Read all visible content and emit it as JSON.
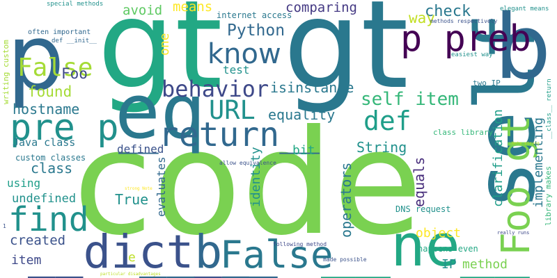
{
  "words": [
    {
      "text": "code",
      "color": "#7ad151"
    },
    {
      "text": "gt",
      "color": "#22a884"
    },
    {
      "text": "gt",
      "color": "#2a788e"
    },
    {
      "text": "self",
      "color": "#2a788e"
    },
    {
      "text": "p",
      "color": "#31688e"
    },
    {
      "text": "b",
      "color": "#31688e"
    },
    {
      "text": "eq",
      "color": "#2a788e"
    },
    {
      "text": "__ne__",
      "color": "#22a884"
    },
    {
      "text": "__dict__",
      "color": "#3b528b"
    },
    {
      "text": "__b__",
      "color": "#31688e"
    },
    {
      "text": "False",
      "color": "#2a788e"
    },
    {
      "text": "Foo gt",
      "color": "#7ad151"
    },
    {
      "text": "p preb",
      "color": "#440154"
    },
    {
      "text": "pre p",
      "color": "#21918c"
    },
    {
      "text": "__return__",
      "color": "#31688e"
    },
    {
      "text": "find",
      "color": "#21918c"
    },
    {
      "text": "False",
      "color": "#a5db36"
    },
    {
      "text": "know",
      "color": "#31688e"
    },
    {
      "text": "behavior",
      "color": "#3e4989"
    },
    {
      "text": "URL",
      "color": "#21918c"
    },
    {
      "text": "def",
      "color": "#1f9e89"
    },
    {
      "text": "self item",
      "color": "#35b779"
    },
    {
      "text": "Python",
      "color": "#31688e"
    },
    {
      "text": "means",
      "color": "#fde725"
    },
    {
      "text": "comparing",
      "color": "#443983"
    },
    {
      "text": "avoid",
      "color": "#5ec962"
    },
    {
      "text": "check",
      "color": "#2a788e"
    },
    {
      "text": "way",
      "color": "#c2df23"
    },
    {
      "text": "Foo",
      "color": "#3e4989"
    },
    {
      "text": "found",
      "color": "#a5db36"
    },
    {
      "text": "hostname",
      "color": "#2a788e"
    },
    {
      "text": "test",
      "color": "#21918c"
    },
    {
      "text": "isinstance",
      "color": "#2a788e"
    },
    {
      "text": "equality",
      "color": "#2a788e"
    },
    {
      "text": "one",
      "color": "#fde725"
    },
    {
      "text": "Java class",
      "color": "#2a788e"
    },
    {
      "text": "defined",
      "color": "#3b528b"
    },
    {
      "text": "bit",
      "color": "#22a884"
    },
    {
      "text": "String",
      "color": "#21918c"
    },
    {
      "text": "class",
      "color": "#2a788e"
    },
    {
      "text": "custom classes",
      "color": "#2a788e"
    },
    {
      "text": "using",
      "color": "#1f9e89"
    },
    {
      "text": "undefined",
      "color": "#21918c"
    },
    {
      "text": "created",
      "color": "#3b528b"
    },
    {
      "text": "item",
      "color": "#3e4989"
    },
    {
      "text": "True",
      "color": "#21918c"
    },
    {
      "text": "evaluates",
      "color": "#31688e"
    },
    {
      "text": "identity",
      "color": "#21918c"
    },
    {
      "text": "operators",
      "color": "#2a788e"
    },
    {
      "text": "equals",
      "color": "#472d7b"
    },
    {
      "text": "clarification",
      "color": "#1f9e89"
    },
    {
      "text": "implementing",
      "color": "#2a788e"
    },
    {
      "text": "object",
      "color": "#fde725"
    },
    {
      "text": "IP",
      "color": "#21918c"
    },
    {
      "text": "method",
      "color": "#7ad151"
    },
    {
      "text": "DNS request",
      "color": "#21918c"
    },
    {
      "text": "happens even",
      "color": "#22a884"
    },
    {
      "text": "e",
      "color": "#bddf26"
    },
    {
      "text": "internet access",
      "color": "#2a788e"
    },
    {
      "text": "allow equivalence",
      "color": "#3b528b"
    },
    {
      "text": "methods respectively",
      "color": "#3b528b"
    },
    {
      "text": "elegant means",
      "color": "#21918c"
    },
    {
      "text": "easiest way",
      "color": "#21918c"
    },
    {
      "text": "two IP",
      "color": "#2a788e"
    },
    {
      "text": "class library",
      "color": "#35b779"
    },
    {
      "text": "library makes",
      "color": "#35b779"
    },
    {
      "text": "__class__ return",
      "color": "#1f9e89"
    },
    {
      "text": "Note strong",
      "color": "#bddf26"
    },
    {
      "text": "strong Note",
      "color": "#fde725"
    },
    {
      "text": "really runs",
      "color": "#3e4989"
    },
    {
      "text": "special methods",
      "color": "#21918c"
    },
    {
      "text": "often important",
      "color": "#31688e"
    },
    {
      "text": "def __init__",
      "color": "#31688e"
    },
    {
      "text": "writing custom",
      "color": "#a5db36"
    },
    {
      "text": "following method",
      "color": "#3e4989"
    },
    {
      "text": "made possible",
      "color": "#3b528b"
    },
    {
      "text": "particular disadvantages",
      "color": "#bddf26"
    },
    {
      "text": "1",
      "color": "#3b528b"
    }
  ]
}
